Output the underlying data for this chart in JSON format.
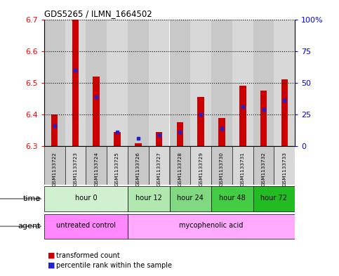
{
  "title": "GDS5265 / ILMN_1664502",
  "samples": [
    "GSM1133722",
    "GSM1133723",
    "GSM1133724",
    "GSM1133725",
    "GSM1133726",
    "GSM1133727",
    "GSM1133728",
    "GSM1133729",
    "GSM1133730",
    "GSM1133731",
    "GSM1133732",
    "GSM1133733"
  ],
  "red_values": [
    6.4,
    6.7,
    6.52,
    6.345,
    6.31,
    6.345,
    6.375,
    6.455,
    6.39,
    6.49,
    6.475,
    6.51
  ],
  "blue_values": [
    6.365,
    6.54,
    6.455,
    6.345,
    6.325,
    6.335,
    6.345,
    6.4,
    6.355,
    6.425,
    6.415,
    6.445
  ],
  "ylim_left": [
    6.3,
    6.7
  ],
  "ylim_right": [
    0,
    100
  ],
  "yticks_left": [
    6.3,
    6.4,
    6.5,
    6.6,
    6.7
  ],
  "yticks_right": [
    0,
    25,
    50,
    75,
    100
  ],
  "ytick_labels_right": [
    "0",
    "25",
    "50",
    "75",
    "100%"
  ],
  "bar_bottom": 6.3,
  "time_groups": [
    {
      "label": "hour 0",
      "start": 0,
      "end": 4,
      "color": "#d0f0d0"
    },
    {
      "label": "hour 12",
      "start": 4,
      "end": 6,
      "color": "#b0e8b0"
    },
    {
      "label": "hour 24",
      "start": 6,
      "end": 8,
      "color": "#80d880"
    },
    {
      "label": "hour 48",
      "start": 8,
      "end": 10,
      "color": "#44cc44"
    },
    {
      "label": "hour 72",
      "start": 10,
      "end": 12,
      "color": "#22bb22"
    }
  ],
  "agent_groups": [
    {
      "label": "untreated control",
      "start": 0,
      "end": 4,
      "color": "#ff88ff"
    },
    {
      "label": "mycophenolic acid",
      "start": 4,
      "end": 12,
      "color": "#ffaaff"
    }
  ],
  "legend_red": "transformed count",
  "legend_blue": "percentile rank within the sample",
  "bar_color": "#cc0000",
  "blue_color": "#2222cc",
  "sample_bg_colors": [
    "#c8c8c8",
    "#d8d8d8",
    "#c8c8c8",
    "#d8d8d8",
    "#c8c8c8",
    "#d8d8d8",
    "#c8c8c8",
    "#d8d8d8",
    "#c8c8c8",
    "#d8d8d8",
    "#c8c8c8",
    "#d8d8d8"
  ]
}
